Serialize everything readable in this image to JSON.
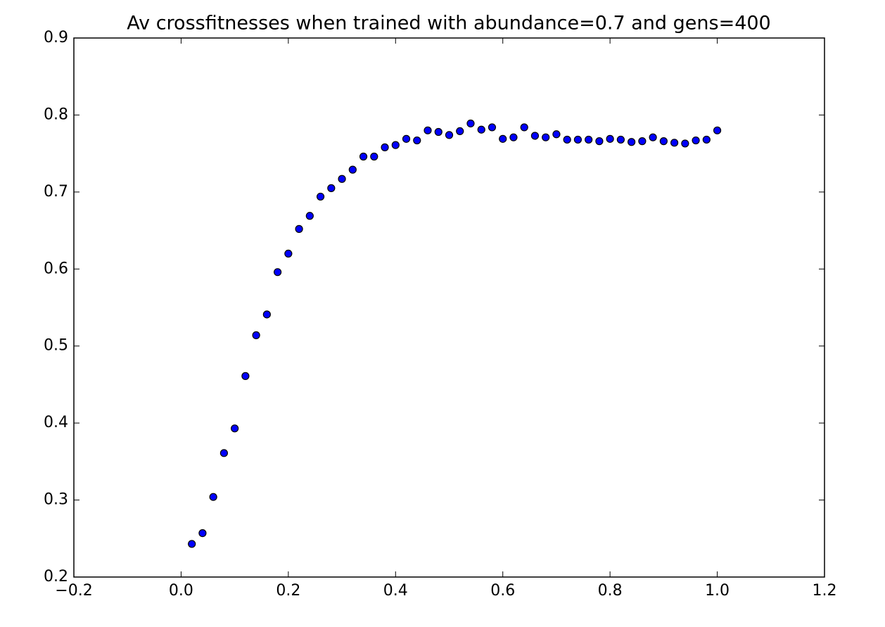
{
  "chart_data": {
    "type": "scatter",
    "title": "Av crossfitnesses when trained with abundance=0.7 and gens=400",
    "x": [
      0.02,
      0.04,
      0.06,
      0.08,
      0.1,
      0.12,
      0.14,
      0.16,
      0.18,
      0.2,
      0.22,
      0.24,
      0.26,
      0.28,
      0.3,
      0.32,
      0.34,
      0.36,
      0.38,
      0.4,
      0.42,
      0.44,
      0.46,
      0.48,
      0.5,
      0.52,
      0.54,
      0.56,
      0.58,
      0.6,
      0.62,
      0.64,
      0.66,
      0.68,
      0.7,
      0.72,
      0.74,
      0.76,
      0.78,
      0.8,
      0.82,
      0.84,
      0.86,
      0.88,
      0.9,
      0.92,
      0.94,
      0.96,
      0.98,
      1.0
    ],
    "values": [
      0.243,
      0.257,
      0.304,
      0.361,
      0.393,
      0.461,
      0.514,
      0.541,
      0.596,
      0.62,
      0.652,
      0.669,
      0.694,
      0.705,
      0.717,
      0.729,
      0.746,
      0.746,
      0.758,
      0.761,
      0.769,
      0.767,
      0.78,
      0.778,
      0.774,
      0.779,
      0.789,
      0.781,
      0.784,
      0.769,
      0.771,
      0.784,
      0.773,
      0.771,
      0.775,
      0.768,
      0.768,
      0.768,
      0.766,
      0.769,
      0.768,
      0.765,
      0.766,
      0.771,
      0.766,
      0.764,
      0.763,
      0.767,
      0.768,
      0.78
    ],
    "color": "#0000ff",
    "xlim": [
      -0.2,
      1.2
    ],
    "xticks": [
      {
        "value": -0.2,
        "label": "−0.2"
      },
      {
        "value": 0,
        "label": "0.0"
      },
      0.2,
      0.4,
      0.6,
      0.8,
      {
        "value": 1,
        "label": "1.0"
      },
      1.2
    ],
    "ylim": [
      0.2,
      0.9
    ],
    "yticks": [
      0.2,
      0.3,
      0.4,
      0.5,
      0.6,
      0.7,
      0.8,
      0.9
    ],
    "grid": false
  }
}
